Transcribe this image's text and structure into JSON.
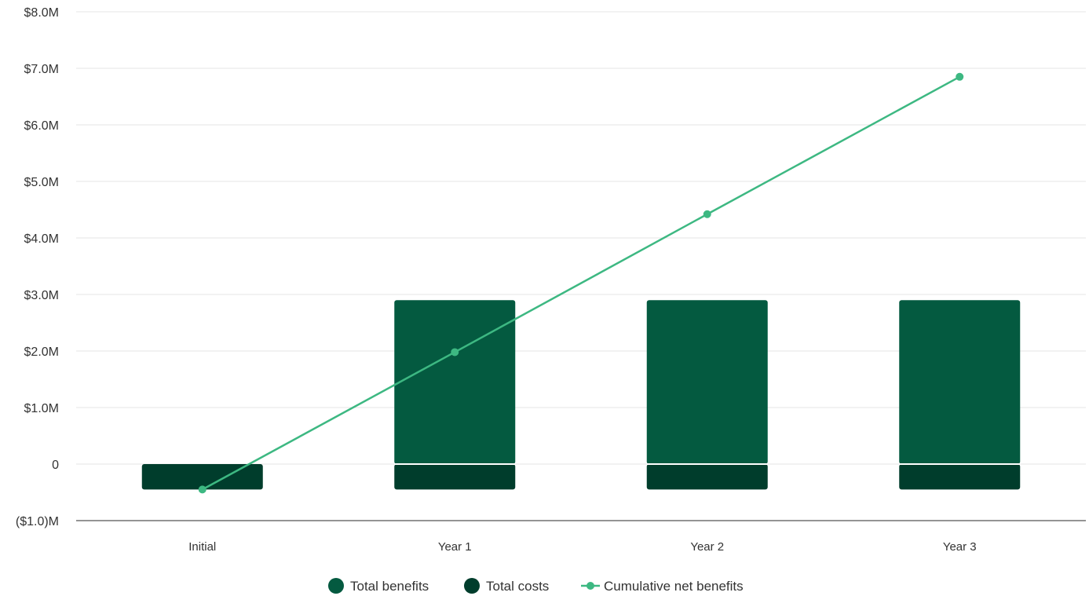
{
  "chart_data": {
    "type": "bar",
    "categories": [
      "Initial",
      "Year 1",
      "Year 2",
      "Year 3"
    ],
    "y_tick_labels": [
      "($1.0)M",
      "0",
      "$1.0M",
      "$2.0M",
      "$3.0M",
      "$4.0M",
      "$5.0M",
      "$6.0M",
      "$7.0M",
      "$8.0M"
    ],
    "y_tick_values": [
      -1,
      0,
      1,
      2,
      3,
      4,
      5,
      6,
      7,
      8
    ],
    "ylim": [
      -1,
      8
    ],
    "grid": true,
    "legend_placement": "bottom-center",
    "series": [
      {
        "name": "Total benefits",
        "kind": "bar",
        "color": "#045A40",
        "values": [
          0,
          2.9,
          2.9,
          2.9
        ]
      },
      {
        "name": "Total costs",
        "kind": "bar",
        "color": "#003D2C",
        "values": [
          -0.45,
          -0.45,
          -0.45,
          -0.45
        ]
      },
      {
        "name": "Cumulative net benefits",
        "kind": "line",
        "color": "#3DB882",
        "values": [
          -0.45,
          1.98,
          4.42,
          6.85
        ]
      }
    ]
  }
}
